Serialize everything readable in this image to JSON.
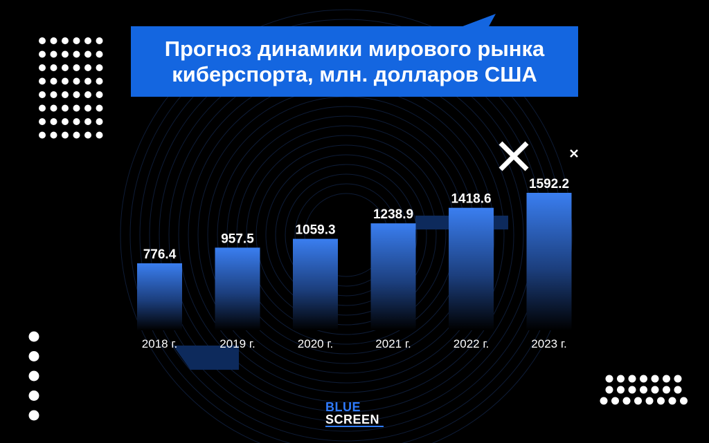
{
  "title": {
    "line1": "Прогноз динамики мирового рынка",
    "line2": "киберспорта, млн. долларов США"
  },
  "logo": {
    "line1": "BLUE",
    "line2": "SCREEN"
  },
  "colors": {
    "background": "#000000",
    "title_box": "#1466e0",
    "bar_top": "#3a7ef0",
    "bar_bottom": "#000000",
    "accent_dark": "#0d2a5c",
    "text": "#ffffff"
  },
  "chart_data": {
    "type": "bar",
    "title": "Прогноз динамики мирового рынка киберспорта, млн. долларов США",
    "categories": [
      "2018 г.",
      "2019 г.",
      "2020 г.",
      "2021 г.",
      "2022 г.",
      "2023 г."
    ],
    "values": [
      776.4,
      957.5,
      1059.3,
      1238.9,
      1418.6,
      1592.2
    ],
    "value_labels": [
      "776.4",
      "957.5",
      "1059.3",
      "1238.9",
      "1418.6",
      "1592.2"
    ],
    "xlabel": "",
    "ylabel": "",
    "grid": false,
    "legend": "none"
  }
}
